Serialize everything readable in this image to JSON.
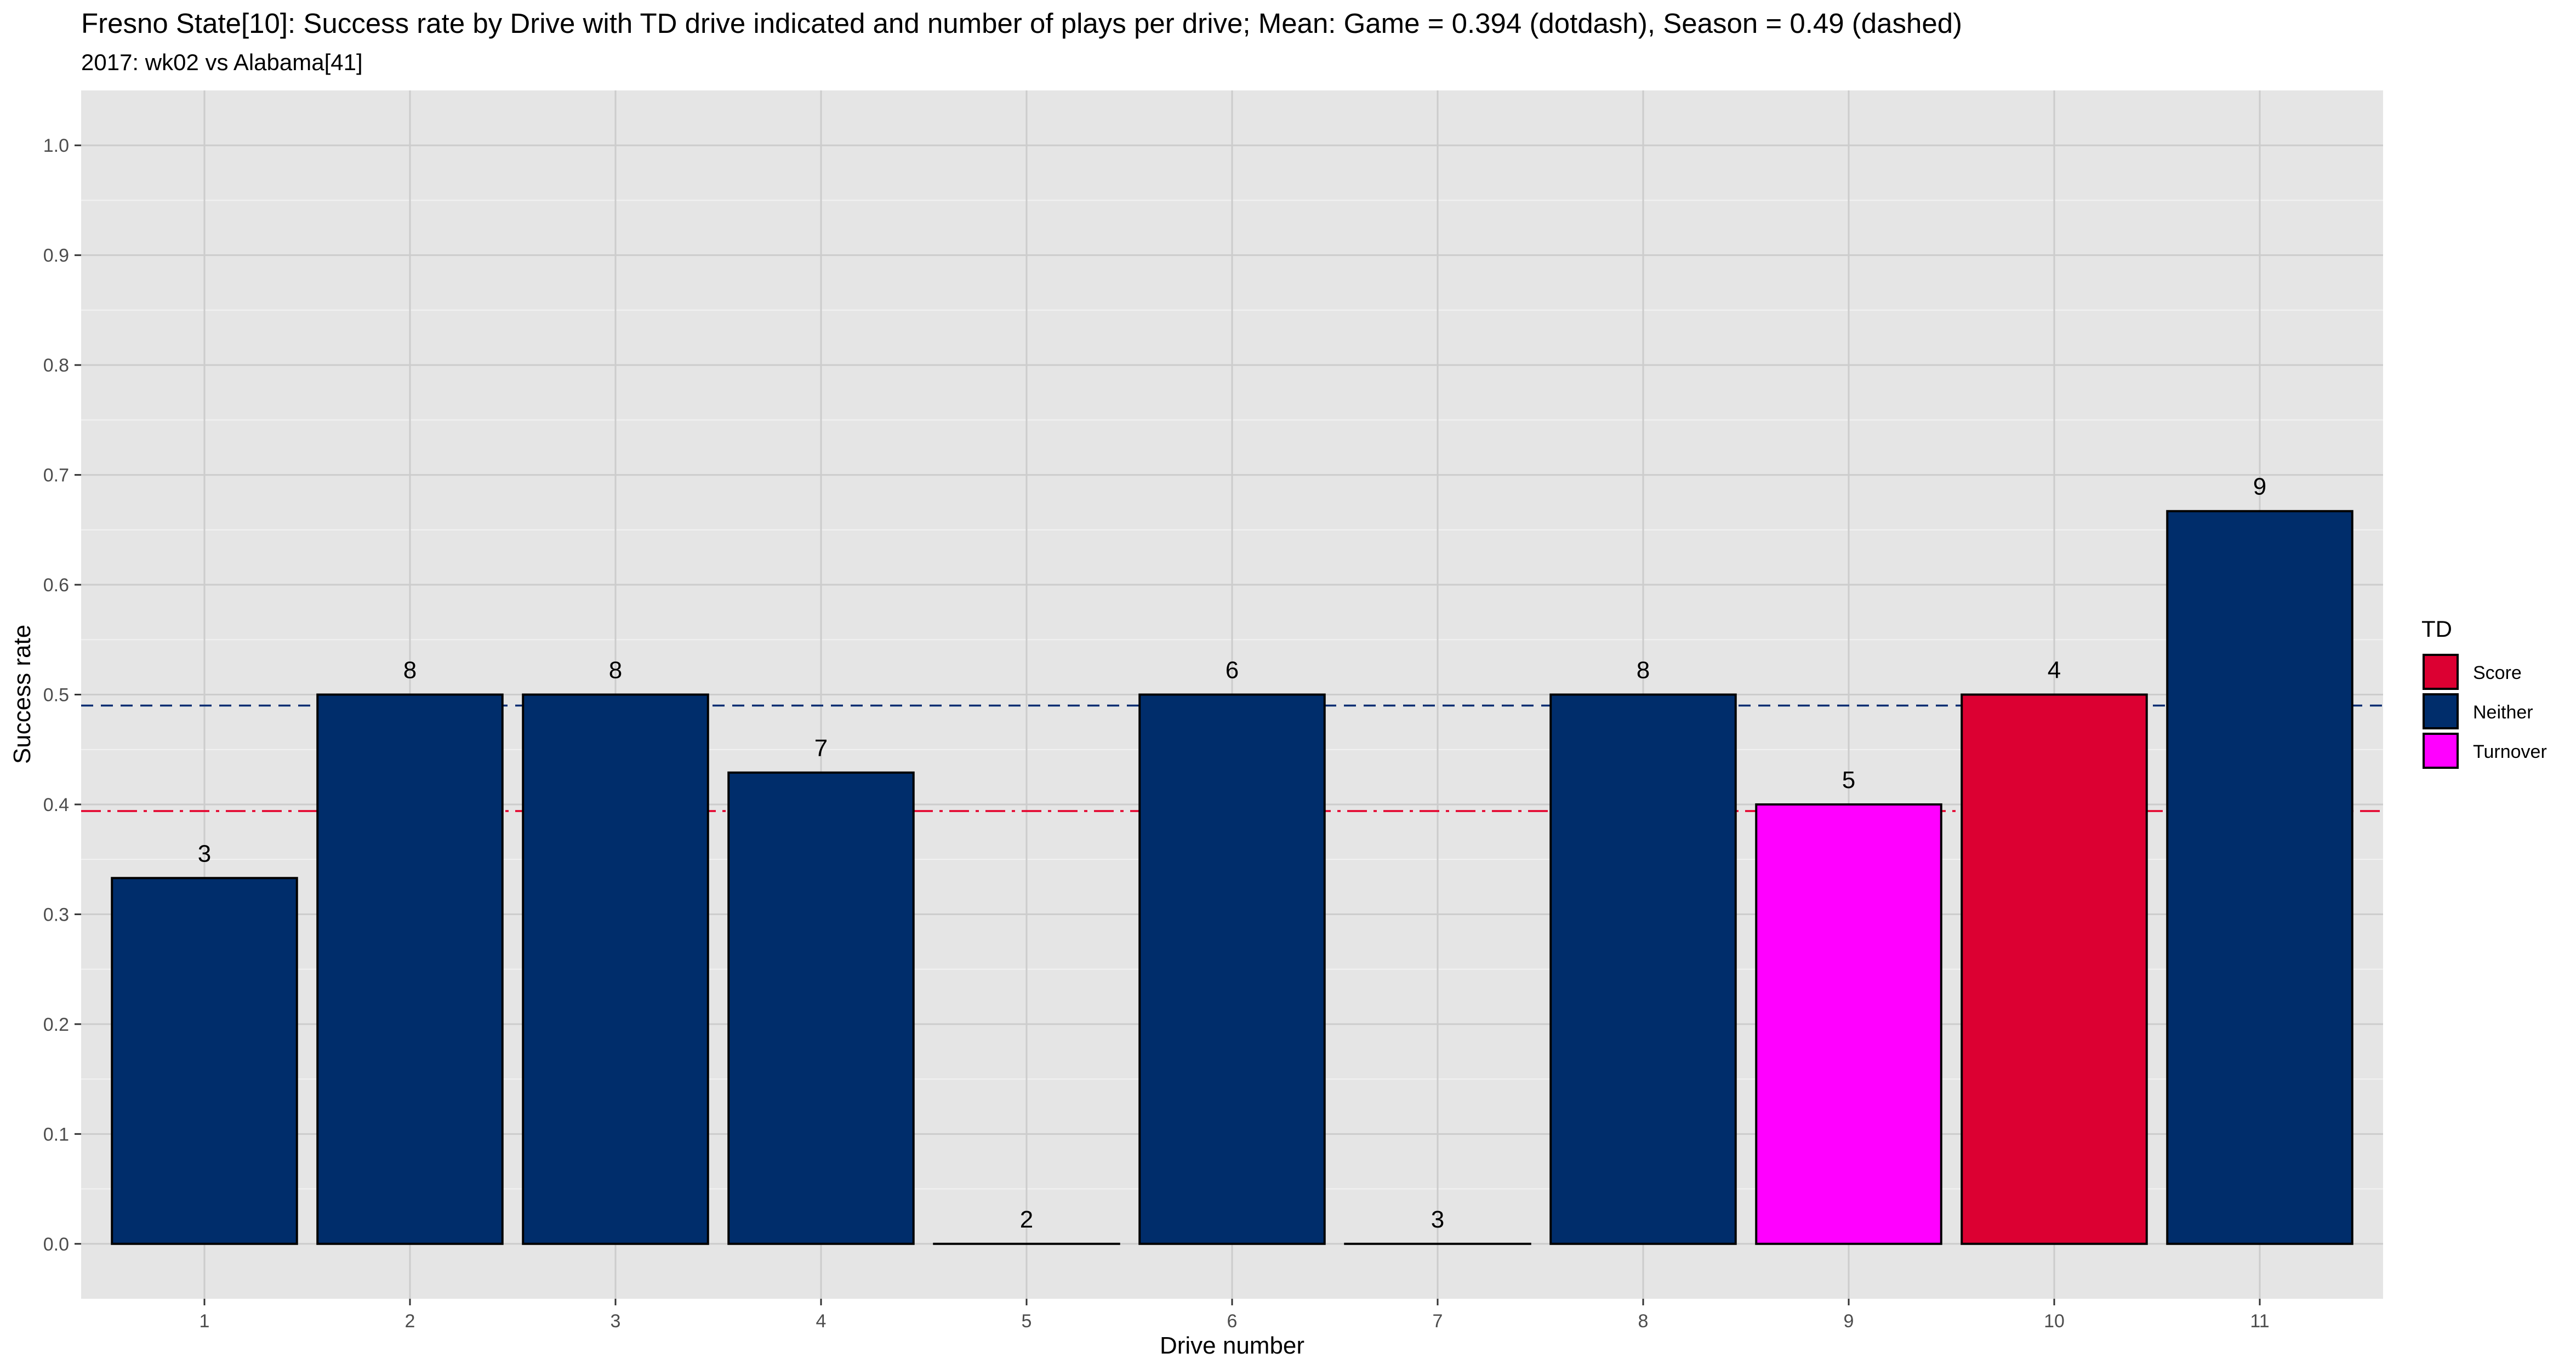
{
  "chart_data": {
    "type": "bar",
    "title": "Fresno State[10]: Success rate by Drive with TD drive indicated and number of plays per drive; Mean: Game = 0.394 (dotdash), Season = 0.49 (dashed)",
    "subtitle": "2017: wk02 vs Alabama[41]",
    "xlabel": "Drive number",
    "ylabel": "Success rate",
    "categories": [
      "1",
      "2",
      "3",
      "4",
      "5",
      "6",
      "7",
      "8",
      "9",
      "10",
      "11"
    ],
    "values": [
      0.333,
      0.5,
      0.5,
      0.429,
      0.0,
      0.5,
      0.0,
      0.5,
      0.4,
      0.5,
      0.667
    ],
    "plays": [
      "3",
      "8",
      "8",
      "7",
      "2",
      "6",
      "3",
      "8",
      "5",
      "4",
      "9"
    ],
    "td": [
      "Neither",
      "Neither",
      "Neither",
      "Neither",
      "Neither",
      "Neither",
      "Neither",
      "Neither",
      "Turnover",
      "Score",
      "Neither"
    ],
    "ylim": [
      -0.05,
      1.05
    ],
    "yticks": [
      "0.0",
      "0.1",
      "0.2",
      "0.3",
      "0.4",
      "0.5",
      "0.6",
      "0.7",
      "0.8",
      "0.9",
      "1.0"
    ],
    "ytick_values": [
      0,
      0.1,
      0.2,
      0.3,
      0.4,
      0.5,
      0.6,
      0.7,
      0.8,
      0.9,
      1.0
    ],
    "reference_lines": [
      {
        "value": 0.49,
        "style": "dashed",
        "color": "#002d72"
      },
      {
        "value": 0.394,
        "style": "dotdash",
        "color": "#e4002b"
      }
    ],
    "legend": {
      "title": "TD",
      "position": "right",
      "items": [
        {
          "label": "Score",
          "color": "#dc0032"
        },
        {
          "label": "Neither",
          "color": "#002d6b"
        },
        {
          "label": "Turnover",
          "color": "#ff00ff"
        }
      ]
    },
    "grid": true,
    "panel_background": "#e5e5e5",
    "grid_color": "#cccccc"
  }
}
